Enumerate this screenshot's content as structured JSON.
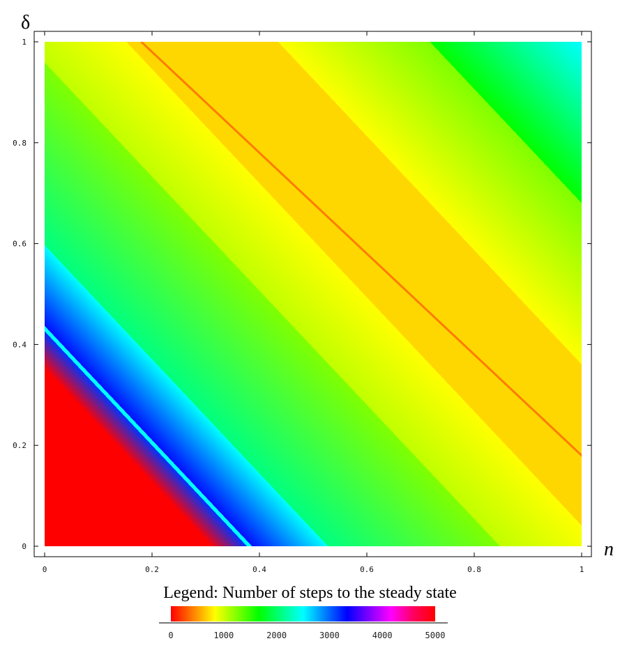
{
  "chart_data": {
    "type": "heatmap",
    "xlabel": "n",
    "ylabel": "δ",
    "xlim": [
      0,
      1
    ],
    "ylim": [
      0,
      1
    ],
    "x_ticks": [
      "0",
      "0.2",
      "0.4",
      "0.6",
      "0.8",
      "1"
    ],
    "y_ticks": [
      "0",
      "0.2",
      "0.4",
      "0.6",
      "0.8",
      "1"
    ],
    "frame": true,
    "grid": false,
    "colormap": "rainbow (red → orange → yellow → green → cyan → blue → magenta → red)",
    "contour_bands": [
      {
        "n_plus_delta_from": 0.0,
        "n_plus_delta_to": 0.33,
        "steps": 5000,
        "color": "#ff0000"
      },
      {
        "n_plus_delta_from": 0.33,
        "n_plus_delta_to": 0.4,
        "steps_from": 5000,
        "steps_to": 3200,
        "color_from": "#ff0000",
        "color_to": "#0033ff"
      },
      {
        "n_plus_delta_from": 0.4,
        "n_plus_delta_to": 0.41,
        "steps": 2800,
        "color": "#00ffff"
      },
      {
        "n_plus_delta_from": 0.41,
        "n_plus_delta_to": 0.56,
        "steps_from": 3100,
        "steps_to": 2500,
        "color_from": "#0010ff",
        "color_to": "#00ffff"
      },
      {
        "n_plus_delta_from": 0.56,
        "n_plus_delta_to": 0.9,
        "steps_from": 2400,
        "steps_to": 1600,
        "color_from": "#00ff80",
        "color_to": "#80ff00"
      },
      {
        "n_plus_delta_from": 0.9,
        "n_plus_delta_to": 1.1,
        "steps_from": 1500,
        "steps_to": 1000,
        "color_from": "#c0ff00",
        "color_to": "#ffff00"
      },
      {
        "n_plus_delta_from": 1.1,
        "n_plus_delta_to": 1.4,
        "steps": 800,
        "color": "#ffd700"
      },
      {
        "n_plus_delta_from": 1.17,
        "n_plus_delta_to": 1.19,
        "steps": 400,
        "color": "#ff7a00",
        "note": "thin ridge"
      },
      {
        "n_plus_delta_from": 1.4,
        "n_plus_delta_to": 1.7,
        "steps_from": 1000,
        "steps_to": 1800,
        "color_from": "#ffff00",
        "color_to": "#80ff00"
      },
      {
        "n_plus_delta_from": 1.7,
        "n_plus_delta_to": 2.0,
        "steps_from": 1900,
        "steps_to": 2500,
        "color_from": "#00ff00",
        "color_to": "#00ffff"
      }
    ],
    "legend": {
      "title": "Legend: Number of steps to the steady state",
      "ticks": [
        "0",
        "1000",
        "2000",
        "3000",
        "4000",
        "5000"
      ],
      "range": [
        0,
        5000
      ],
      "gradient_stops": [
        "#ff0000",
        "#ff7f00",
        "#ffff00",
        "#7fff00",
        "#00ff00",
        "#00ff80",
        "#00ffff",
        "#0080ff",
        "#0000ff",
        "#8000ff",
        "#ff00ff",
        "#ff0060",
        "#ff0000"
      ]
    }
  }
}
